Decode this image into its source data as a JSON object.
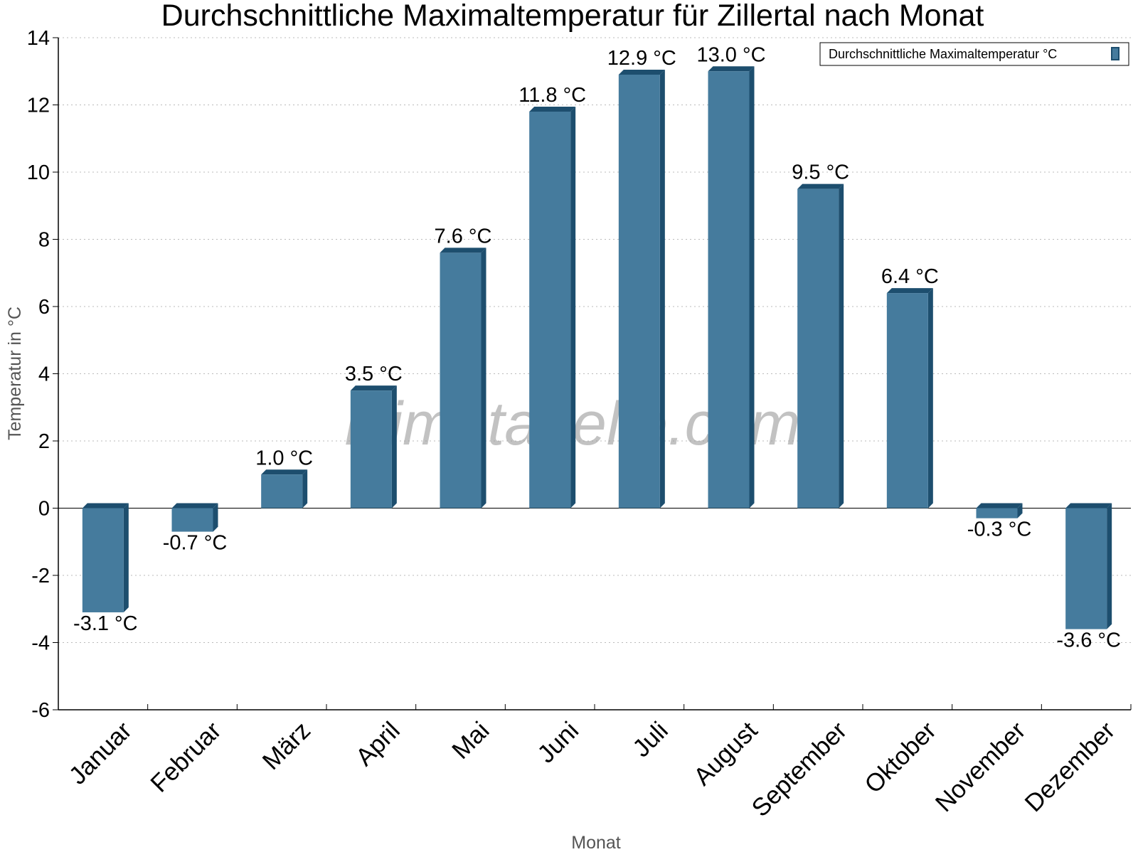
{
  "chart_data": {
    "type": "bar",
    "title": "Durchschnittliche Maximaltemperatur für Zillertal nach Monat",
    "xlabel": "Monat",
    "ylabel": "Temperatur in °C",
    "categories": [
      "Januar",
      "Februar",
      "März",
      "April",
      "Mai",
      "Juni",
      "Juli",
      "August",
      "September",
      "Oktober",
      "November",
      "Dezember"
    ],
    "series": [
      {
        "name": "Durchschnittliche Maximaltemperatur °C",
        "values": [
          -3.1,
          -0.7,
          1.0,
          3.5,
          7.6,
          11.8,
          12.9,
          13.0,
          9.5,
          6.4,
          -0.3,
          -3.6
        ],
        "data_labels": [
          "-3.1 °C",
          "-0.7 °C",
          "1.0 °C",
          "3.5 °C",
          "7.6 °C",
          "11.8 °C",
          "12.9 °C",
          "13.0 °C",
          "9.5 °C",
          "6.4 °C",
          "-0.3 °C",
          "-3.6 °C"
        ],
        "color": "#457b9d",
        "side_color": "#1d4e6e"
      }
    ],
    "ylim": [
      -6,
      14
    ],
    "yticks": [
      -6,
      -4,
      -2,
      0,
      2,
      4,
      6,
      8,
      10,
      12,
      14
    ],
    "grid": true,
    "legend_position": "top-right",
    "watermark": "klimatabelle.com"
  }
}
